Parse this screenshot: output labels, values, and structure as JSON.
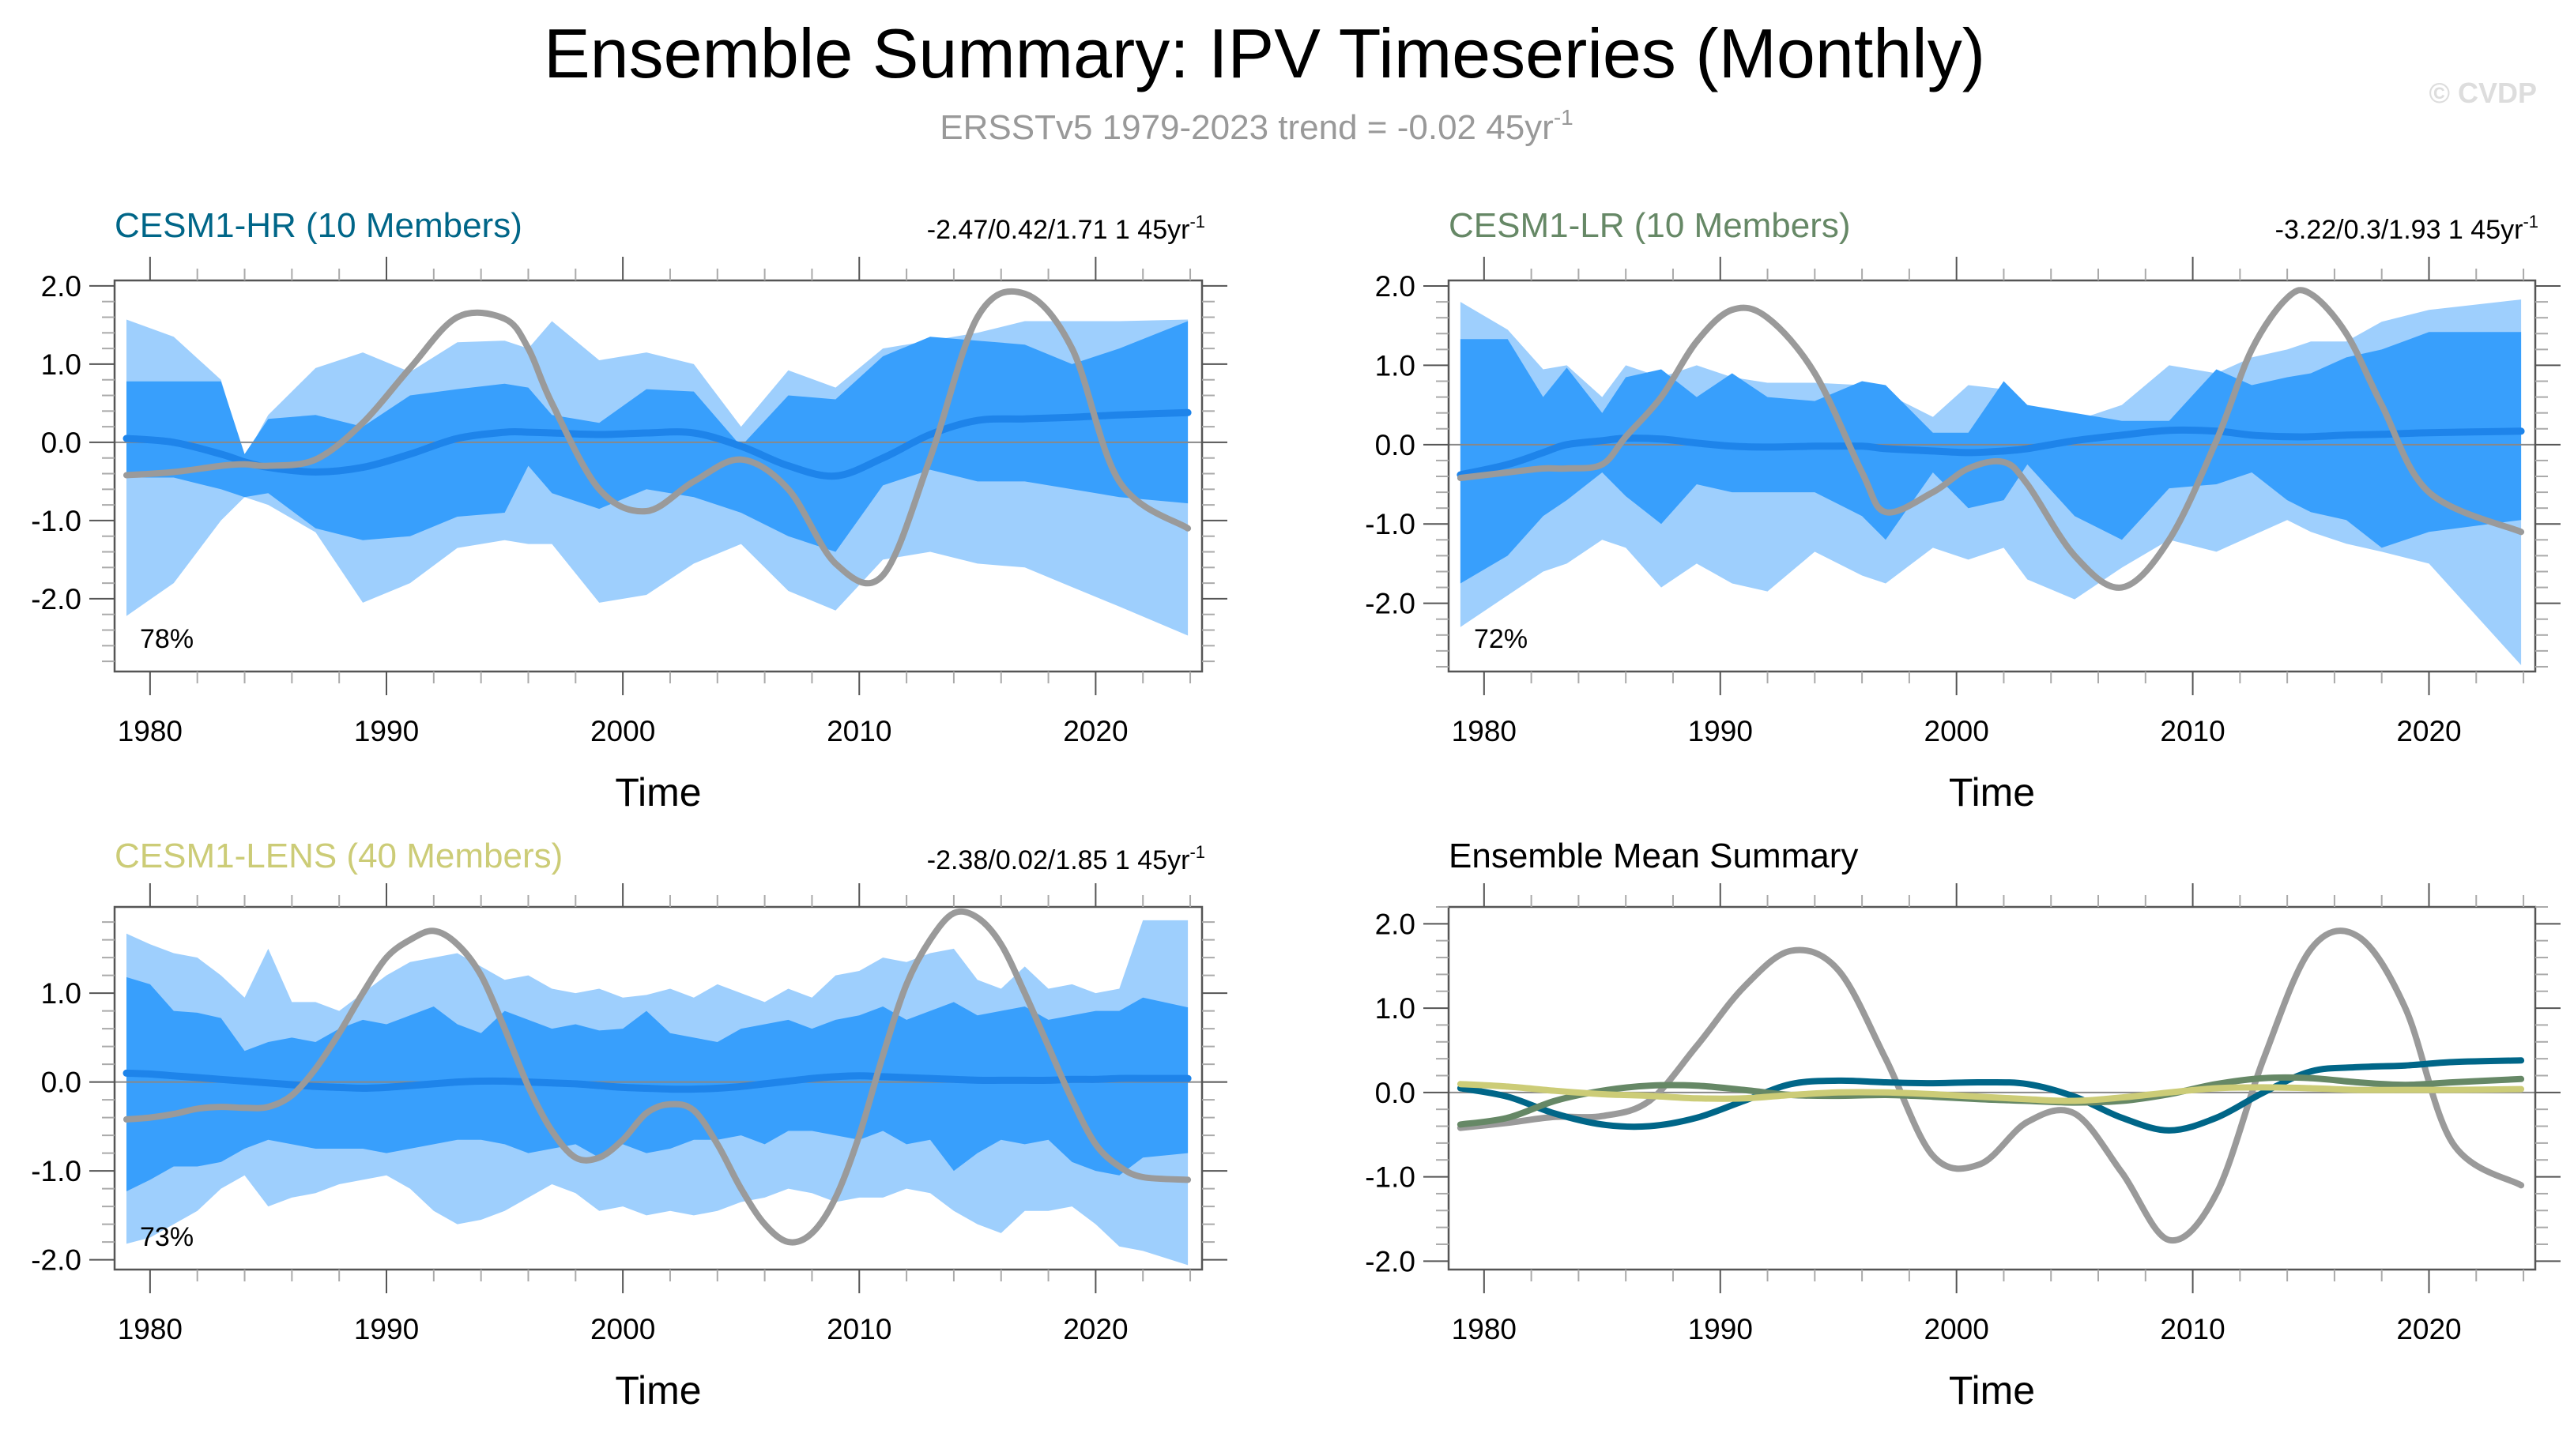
{
  "page": {
    "title": "Ensemble Summary: IPV Timeseries (Monthly)",
    "subtitle": "ERSSTv5 1979-2023 trend = -0.02 45yr",
    "subtitle_sup": "-1",
    "watermark": "© CVDP"
  },
  "colors": {
    "obs": "#9a9a9a",
    "outer_band": "#9ecffd",
    "inner_band": "#389ffc",
    "ens_mean": "#1e84ea",
    "hr": "#006688",
    "lr": "#668866",
    "lens": "#cccc77",
    "zero_line": "#888888"
  },
  "chart_data": [
    {
      "id": "hr",
      "type": "area",
      "title": "CESM1-HR (10 Members)",
      "stats": "-2.47/0.42/1.71 1 45yr",
      "stats_sup": "-1",
      "percent_label": "78%",
      "xlabel": "Time",
      "ylabel": "",
      "xlim": [
        1978.5,
        2024.5
      ],
      "ylim": [
        -2.93,
        2.07
      ],
      "yticks": [
        2.0,
        1.0,
        0.0,
        -1.0,
        -2.0
      ],
      "ytick_labels": [
        "2.0",
        "1.0",
        "0.0",
        "-1.0",
        "-2.0"
      ],
      "xticks": [
        1980,
        1990,
        2000,
        2010,
        2020
      ],
      "xtick_labels": [
        "1980",
        "1990",
        "2000",
        "2010",
        "2020"
      ],
      "x": [
        1979,
        1981,
        1983,
        1984,
        1985,
        1987,
        1989,
        1991,
        1993,
        1995,
        1996,
        1997,
        1999,
        2001,
        2003,
        2005,
        2007,
        2009,
        2011,
        2013,
        2015,
        2017,
        2019,
        2021,
        2023.9
      ],
      "outer_upper": [
        1.57,
        1.35,
        0.8,
        -0.2,
        0.35,
        0.95,
        1.15,
        0.9,
        1.28,
        1.3,
        1.2,
        1.55,
        1.05,
        1.15,
        1.0,
        0.2,
        0.92,
        0.7,
        1.2,
        1.3,
        1.4,
        1.55,
        1.55,
        1.55,
        1.57
      ],
      "inner_upper": [
        0.78,
        0.78,
        0.78,
        -0.15,
        0.3,
        0.35,
        0.2,
        0.6,
        0.68,
        0.75,
        0.7,
        0.35,
        0.25,
        0.68,
        0.65,
        -0.05,
        0.6,
        0.55,
        1.1,
        1.35,
        1.3,
        1.25,
        1.0,
        1.2,
        1.55
      ],
      "inner_lower": [
        -0.45,
        -0.45,
        -0.6,
        -0.7,
        -0.65,
        -1.1,
        -1.25,
        -1.2,
        -0.95,
        -0.9,
        -0.3,
        -0.65,
        -0.85,
        -0.6,
        -0.7,
        -0.9,
        -1.2,
        -1.4,
        -0.55,
        -0.35,
        -0.5,
        -0.5,
        -0.6,
        -0.7,
        -0.78
      ],
      "outer_lower": [
        -2.22,
        -1.8,
        -1.0,
        -0.7,
        -0.8,
        -1.15,
        -2.05,
        -1.8,
        -1.35,
        -1.25,
        -1.3,
        -1.3,
        -2.05,
        -1.95,
        -1.55,
        -1.3,
        -1.9,
        -2.15,
        -1.5,
        -1.4,
        -1.55,
        -1.6,
        -1.85,
        -2.1,
        -2.47
      ],
      "ens_mean": [
        0.05,
        0.0,
        -0.15,
        -0.25,
        -0.32,
        -0.38,
        -0.32,
        -0.15,
        0.05,
        0.13,
        0.13,
        0.12,
        0.1,
        0.12,
        0.12,
        -0.05,
        -0.3,
        -0.43,
        -0.2,
        0.1,
        0.28,
        0.3,
        0.32,
        0.35,
        0.38
      ],
      "obs": [
        -0.42,
        -0.38,
        -0.3,
        -0.28,
        -0.3,
        -0.22,
        0.25,
        0.95,
        1.6,
        1.58,
        1.2,
        0.5,
        -0.6,
        -0.88,
        -0.5,
        -0.22,
        -0.6,
        -1.55,
        -1.7,
        -0.2,
        1.6,
        1.9,
        1.2,
        -0.5,
        -1.1
      ]
    },
    {
      "id": "lr",
      "type": "area",
      "title": "CESM1-LR (10 Members)",
      "stats": "-3.22/0.3/1.93 1 45yr",
      "stats_sup": "-1",
      "percent_label": "72%",
      "xlabel": "Time",
      "ylabel": "",
      "xlim": [
        1978.5,
        2024.5
      ],
      "ylim": [
        -2.86,
        2.07
      ],
      "yticks": [
        2.0,
        1.0,
        0.0,
        -1.0,
        -2.0
      ],
      "ytick_labels": [
        "2.0",
        "1.0",
        "0.0",
        "-1.0",
        "-2.0"
      ],
      "xticks": [
        1980,
        1990,
        2000,
        2010,
        2020
      ],
      "xtick_labels": [
        "1980",
        "1990",
        "2000",
        "2010",
        "2020"
      ],
      "x": [
        1979,
        1981,
        1982.5,
        1983.5,
        1985,
        1986,
        1987.5,
        1989,
        1990.5,
        1992,
        1994,
        1996,
        1997,
        1999,
        2000.5,
        2002,
        2003,
        2005,
        2007,
        2009,
        2011,
        2012.5,
        2014,
        2015,
        2016.5,
        2018,
        2020,
        2023.9
      ],
      "outer_upper": [
        1.8,
        1.45,
        0.95,
        1.0,
        0.6,
        1.0,
        0.85,
        1.0,
        0.85,
        0.78,
        0.78,
        0.75,
        0.65,
        0.35,
        0.75,
        0.7,
        0.5,
        0.3,
        0.5,
        1.0,
        0.9,
        1.1,
        1.2,
        1.3,
        1.3,
        1.55,
        1.7,
        1.83
      ],
      "inner_upper": [
        1.33,
        1.33,
        0.6,
        0.97,
        0.4,
        0.85,
        0.95,
        0.6,
        0.9,
        0.6,
        0.55,
        0.8,
        0.75,
        0.15,
        0.15,
        0.8,
        0.5,
        0.4,
        0.3,
        0.3,
        0.95,
        0.75,
        0.85,
        0.9,
        1.1,
        1.2,
        1.42,
        1.42
      ],
      "inner_lower": [
        -1.75,
        -1.4,
        -0.9,
        -0.7,
        -0.35,
        -0.65,
        -1.0,
        -0.5,
        -0.6,
        -0.6,
        -0.6,
        -0.9,
        -1.2,
        -0.35,
        -0.8,
        -0.7,
        -0.25,
        -0.9,
        -1.2,
        -0.55,
        -0.5,
        -0.35,
        -0.7,
        -0.85,
        -0.95,
        -1.3,
        -1.1,
        -0.95
      ],
      "outer_lower": [
        -2.3,
        -1.9,
        -1.6,
        -1.5,
        -1.2,
        -1.3,
        -1.8,
        -1.5,
        -1.75,
        -1.85,
        -1.35,
        -1.65,
        -1.75,
        -1.3,
        -1.45,
        -1.3,
        -1.7,
        -1.95,
        -1.55,
        -1.2,
        -1.35,
        -1.15,
        -0.95,
        -1.1,
        -1.25,
        -1.35,
        -1.5,
        -2.78
      ],
      "ens_mean": [
        -0.38,
        -0.25,
        -0.1,
        0.0,
        0.05,
        0.08,
        0.07,
        0.02,
        -0.02,
        -0.03,
        -0.02,
        -0.02,
        -0.05,
        -0.08,
        -0.1,
        -0.08,
        -0.05,
        0.05,
        0.12,
        0.18,
        0.17,
        0.12,
        0.1,
        0.1,
        0.12,
        0.13,
        0.15,
        0.17
      ],
      "obs": [
        -0.42,
        -0.35,
        -0.3,
        -0.3,
        -0.25,
        0.1,
        0.6,
        1.3,
        1.7,
        1.6,
        0.9,
        -0.35,
        -0.85,
        -0.6,
        -0.3,
        -0.22,
        -0.5,
        -1.4,
        -1.8,
        -1.2,
        0.05,
        1.2,
        1.85,
        1.9,
        1.4,
        0.5,
        -0.6,
        -1.1
      ]
    },
    {
      "id": "lens",
      "type": "area",
      "title": "CESM1-LENS (40 Members)",
      "stats": "-2.38/0.02/1.85 1 45yr",
      "stats_sup": "-1",
      "percent_label": "73%",
      "xlabel": "Time",
      "ylabel": "",
      "xlim": [
        1978.5,
        2024.5
      ],
      "ylim": [
        -2.11,
        1.97
      ],
      "yticks": [
        1.0,
        0.0,
        -1.0,
        -2.0
      ],
      "ytick_labels": [
        "1.0",
        "0.0",
        "-1.0",
        "-2.0"
      ],
      "xticks": [
        1980,
        1990,
        2000,
        2010,
        2020
      ],
      "xtick_labels": [
        "1980",
        "1990",
        "2000",
        "2010",
        "2020"
      ],
      "x": [
        1979,
        1980,
        1981,
        1982,
        1983,
        1984,
        1985,
        1986,
        1987,
        1988,
        1989,
        1990,
        1991,
        1992,
        1993,
        1994,
        1995,
        1996,
        1997,
        1998,
        1999,
        2000,
        2001,
        2002,
        2003,
        2004,
        2005,
        2006,
        2007,
        2008,
        2009,
        2010,
        2011,
        2012,
        2013,
        2014,
        2015,
        2016,
        2017,
        2018,
        2019,
        2020,
        2021,
        2022,
        2023.9
      ],
      "outer_upper": [
        1.67,
        1.55,
        1.45,
        1.4,
        1.2,
        0.95,
        1.5,
        0.9,
        0.9,
        0.8,
        1.0,
        1.2,
        1.35,
        1.4,
        1.45,
        1.3,
        1.15,
        1.2,
        1.05,
        1.0,
        1.05,
        0.95,
        0.98,
        1.05,
        0.95,
        1.1,
        1.0,
        0.9,
        1.05,
        0.95,
        1.2,
        1.25,
        1.4,
        1.35,
        1.45,
        1.5,
        1.15,
        1.05,
        1.3,
        1.05,
        1.1,
        1.0,
        1.05,
        1.82,
        1.82
      ],
      "inner_upper": [
        1.18,
        1.1,
        0.8,
        0.78,
        0.72,
        0.35,
        0.45,
        0.5,
        0.45,
        0.6,
        0.7,
        0.65,
        0.75,
        0.85,
        0.65,
        0.55,
        0.8,
        0.7,
        0.6,
        0.65,
        0.58,
        0.6,
        0.8,
        0.55,
        0.5,
        0.45,
        0.6,
        0.65,
        0.7,
        0.6,
        0.7,
        0.75,
        0.85,
        0.7,
        0.8,
        0.9,
        0.75,
        0.8,
        0.85,
        0.7,
        0.75,
        0.8,
        0.8,
        0.95,
        0.84
      ],
      "inner_lower": [
        -1.23,
        -1.1,
        -0.95,
        -0.95,
        -0.9,
        -0.75,
        -0.65,
        -0.7,
        -0.75,
        -0.75,
        -0.75,
        -0.8,
        -0.75,
        -0.7,
        -0.65,
        -0.65,
        -0.7,
        -0.8,
        -0.75,
        -0.7,
        -0.85,
        -0.7,
        -0.8,
        -0.75,
        -0.65,
        -0.65,
        -0.6,
        -0.7,
        -0.55,
        -0.55,
        -0.6,
        -0.65,
        -0.55,
        -0.7,
        -0.65,
        -1.0,
        -0.8,
        -0.65,
        -0.7,
        -0.65,
        -0.9,
        -1.0,
        -1.05,
        -0.85,
        -0.8
      ],
      "outer_lower": [
        -1.82,
        -1.75,
        -1.6,
        -1.45,
        -1.2,
        -1.05,
        -1.4,
        -1.3,
        -1.25,
        -1.15,
        -1.1,
        -1.05,
        -1.2,
        -1.45,
        -1.6,
        -1.55,
        -1.45,
        -1.3,
        -1.15,
        -1.25,
        -1.45,
        -1.4,
        -1.5,
        -1.45,
        -1.5,
        -1.45,
        -1.35,
        -1.3,
        -1.2,
        -1.25,
        -1.35,
        -1.3,
        -1.3,
        -1.2,
        -1.25,
        -1.45,
        -1.6,
        -1.7,
        -1.45,
        -1.45,
        -1.4,
        -1.6,
        -1.85,
        -1.9,
        -2.06
      ],
      "ens_mean": [
        0.1,
        0.09,
        0.07,
        0.05,
        0.03,
        0.01,
        -0.01,
        -0.03,
        -0.05,
        -0.06,
        -0.07,
        -0.06,
        -0.04,
        -0.02,
        0.0,
        0.01,
        0.01,
        0.0,
        -0.01,
        -0.02,
        -0.04,
        -0.06,
        -0.07,
        -0.08,
        -0.08,
        -0.07,
        -0.05,
        -0.02,
        0.01,
        0.04,
        0.06,
        0.07,
        0.06,
        0.05,
        0.04,
        0.03,
        0.02,
        0.02,
        0.02,
        0.02,
        0.03,
        0.03,
        0.04,
        0.04,
        0.04
      ],
      "obs": [
        -0.42,
        -0.4,
        -0.36,
        -0.3,
        -0.28,
        -0.29,
        -0.28,
        -0.15,
        0.15,
        0.55,
        1.0,
        1.4,
        1.6,
        1.7,
        1.55,
        1.2,
        0.6,
        -0.05,
        -0.55,
        -0.85,
        -0.85,
        -0.65,
        -0.35,
        -0.25,
        -0.32,
        -0.7,
        -1.2,
        -1.6,
        -1.8,
        -1.7,
        -1.3,
        -0.6,
        0.3,
        1.1,
        1.6,
        1.9,
        1.85,
        1.55,
        1.0,
        0.4,
        -0.2,
        -0.7,
        -0.95,
        -1.07,
        -1.1
      ]
    },
    {
      "id": "mean_summary",
      "type": "line",
      "title": "Ensemble Mean Summary",
      "xlabel": "Time",
      "ylabel": "",
      "xlim": [
        1978.5,
        2024.5
      ],
      "ylim": [
        -2.1,
        2.2
      ],
      "yticks": [
        2.0,
        1.0,
        0.0,
        -1.0,
        -2.0
      ],
      "ytick_labels": [
        "2.0",
        "1.0",
        "0.0",
        "-1.0",
        "-2.0"
      ],
      "xticks": [
        1980,
        1990,
        2000,
        2010,
        2020
      ],
      "xtick_labels": [
        "1980",
        "1990",
        "2000",
        "2010",
        "2020"
      ],
      "x": [
        1979,
        1981,
        1983,
        1985,
        1987,
        1989,
        1991,
        1993,
        1995,
        1997,
        1999,
        2001,
        2003,
        2005,
        2007,
        2009,
        2011,
        2013,
        2015,
        2017,
        2019,
        2021,
        2023.9
      ],
      "series": [
        {
          "name": "ERSSTv5",
          "color_key": "obs",
          "values": [
            -0.42,
            -0.36,
            -0.29,
            -0.28,
            -0.1,
            0.55,
            1.25,
            1.68,
            1.45,
            0.4,
            -0.75,
            -0.85,
            -0.35,
            -0.25,
            -0.95,
            -1.75,
            -1.2,
            0.4,
            1.7,
            1.85,
            1.0,
            -0.6,
            -1.1
          ]
        },
        {
          "name": "CESM1-HR",
          "color_key": "hr",
          "values": [
            0.05,
            -0.05,
            -0.25,
            -0.38,
            -0.4,
            -0.3,
            -0.1,
            0.1,
            0.14,
            0.12,
            0.11,
            0.12,
            0.1,
            -0.05,
            -0.3,
            -0.45,
            -0.3,
            0.0,
            0.25,
            0.3,
            0.32,
            0.36,
            0.38
          ]
        },
        {
          "name": "CESM1-LR",
          "color_key": "lr",
          "values": [
            -0.38,
            -0.3,
            -0.1,
            0.02,
            0.08,
            0.08,
            0.03,
            -0.03,
            -0.04,
            -0.03,
            -0.05,
            -0.08,
            -0.1,
            -0.12,
            -0.1,
            -0.02,
            0.1,
            0.17,
            0.17,
            0.12,
            0.09,
            0.12,
            0.16
          ]
        },
        {
          "name": "CESM1-LENS",
          "color_key": "lens",
          "values": [
            0.1,
            0.07,
            0.02,
            -0.02,
            -0.04,
            -0.07,
            -0.07,
            -0.03,
            0.0,
            0.0,
            -0.02,
            -0.05,
            -0.08,
            -0.1,
            -0.06,
            0.0,
            0.05,
            0.06,
            0.05,
            0.03,
            0.03,
            0.03,
            0.04
          ]
        }
      ]
    }
  ]
}
